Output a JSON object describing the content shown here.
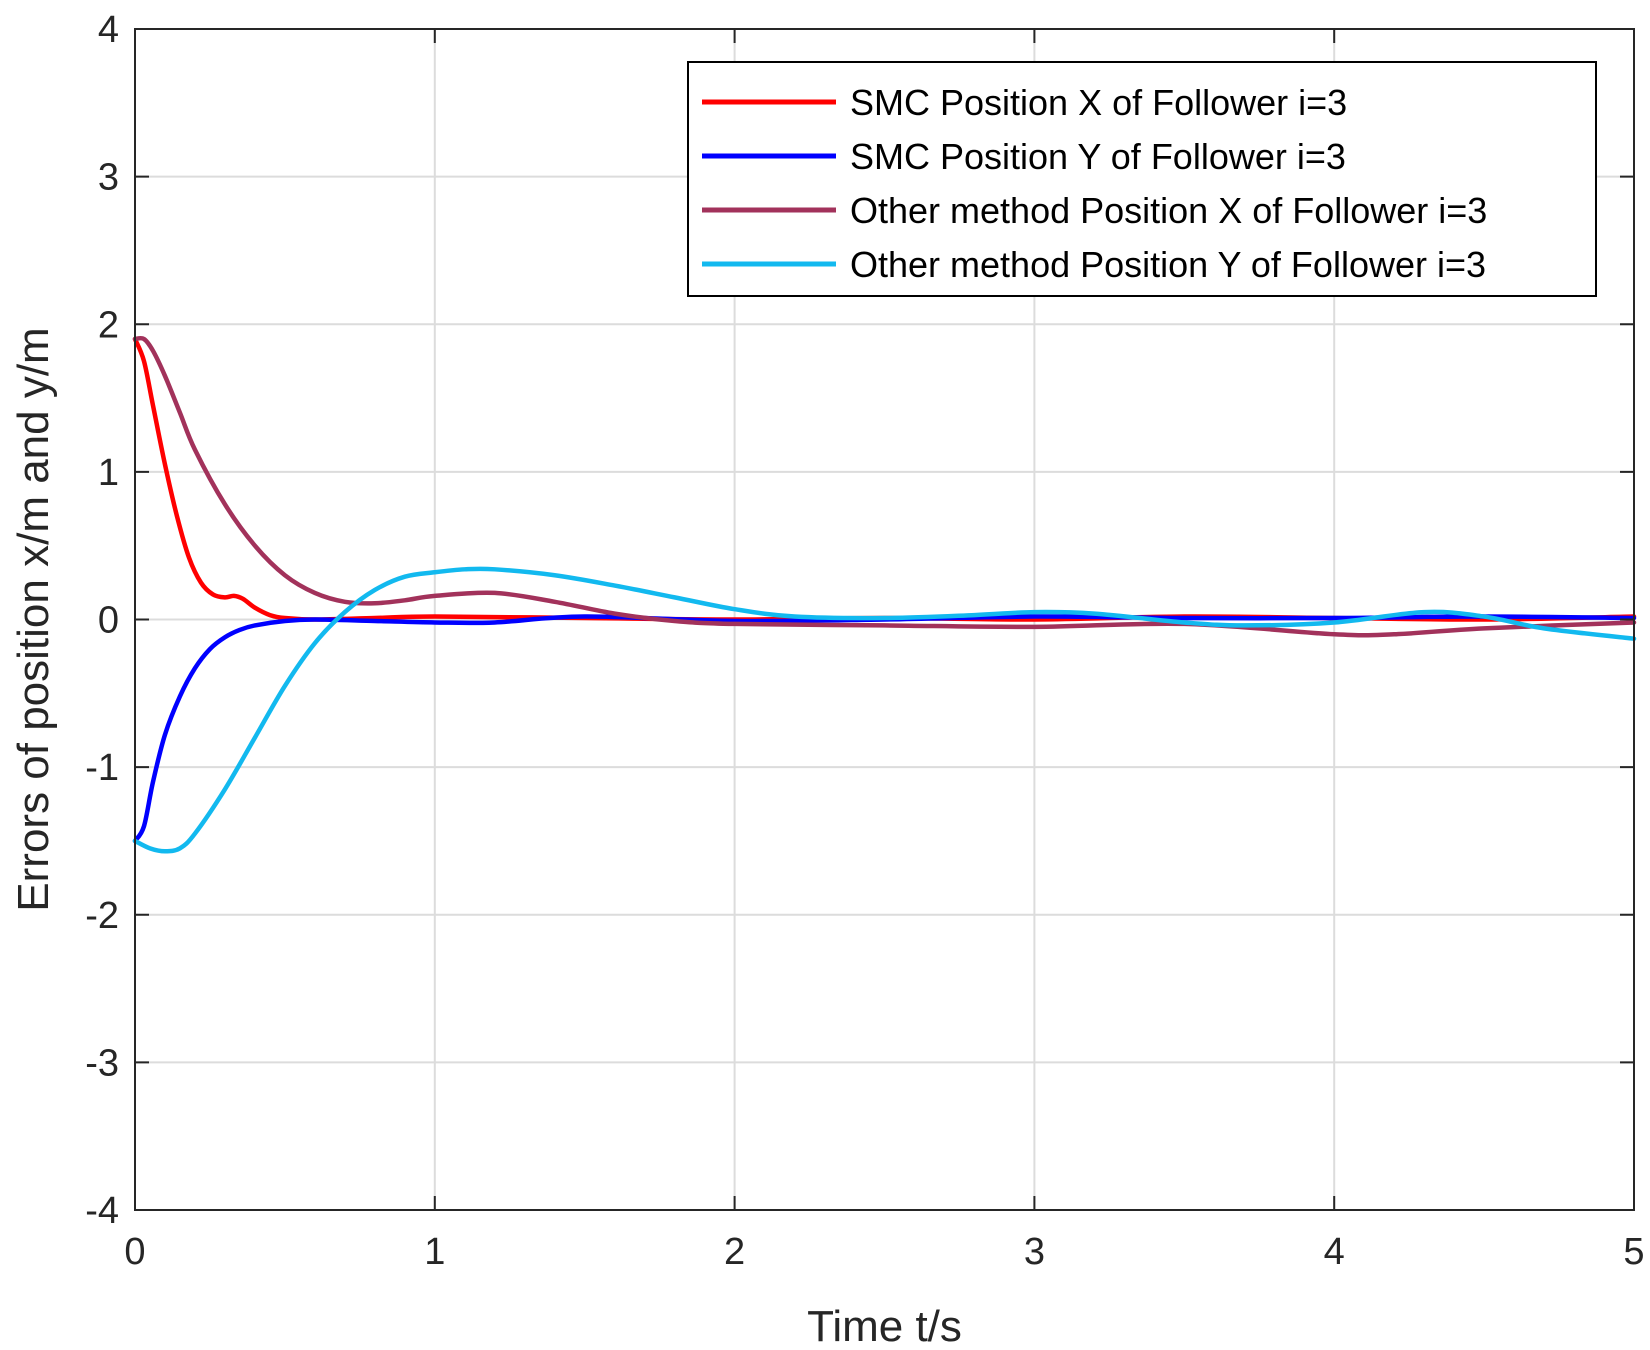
{
  "chart_data": {
    "type": "line",
    "title": "",
    "xlabel": "Time t/s",
    "ylabel": "Errors of position x/m and y/m",
    "xlim": [
      0,
      5
    ],
    "ylim": [
      -4,
      4
    ],
    "xticks": [
      0,
      1,
      2,
      3,
      4,
      5
    ],
    "yticks": [
      -4,
      -3,
      -2,
      -1,
      0,
      1,
      2,
      3,
      4
    ],
    "grid": true,
    "legend_location": "top-right",
    "series": [
      {
        "name": "SMC Position X of Follower i=3",
        "color": "#ff0000",
        "x": [
          0,
          0.03,
          0.06,
          0.1,
          0.14,
          0.18,
          0.22,
          0.26,
          0.3,
          0.33,
          0.36,
          0.4,
          0.45,
          0.5,
          0.6,
          0.8,
          1.0,
          1.5,
          2.0,
          2.5,
          3.0,
          3.5,
          4.0,
          4.5,
          5.0
        ],
        "y": [
          1.9,
          1.75,
          1.45,
          1.05,
          0.7,
          0.42,
          0.25,
          0.17,
          0.15,
          0.16,
          0.14,
          0.08,
          0.03,
          0.01,
          0.0,
          0.01,
          0.02,
          0.01,
          0.0,
          0.01,
          0.0,
          0.02,
          0.01,
          0.0,
          0.02
        ]
      },
      {
        "name": "SMC Position Y of Follower i=3",
        "color": "#0000ff",
        "x": [
          0,
          0.03,
          0.06,
          0.1,
          0.15,
          0.2,
          0.25,
          0.3,
          0.35,
          0.4,
          0.5,
          0.6,
          0.8,
          1.0,
          1.2,
          1.5,
          2.0,
          2.5,
          3.0,
          3.5,
          4.0,
          4.5,
          5.0
        ],
        "y": [
          -1.5,
          -1.4,
          -1.1,
          -0.78,
          -0.52,
          -0.33,
          -0.2,
          -0.12,
          -0.07,
          -0.04,
          -0.01,
          0.0,
          -0.01,
          -0.02,
          -0.02,
          0.02,
          -0.01,
          0.0,
          0.02,
          0.01,
          0.01,
          0.02,
          0.01
        ]
      },
      {
        "name": "Other method Position X of Follower i=3",
        "color": "#a2325b",
        "x": [
          0,
          0.03,
          0.06,
          0.1,
          0.15,
          0.2,
          0.3,
          0.4,
          0.5,
          0.6,
          0.7,
          0.8,
          0.9,
          1.0,
          1.2,
          1.4,
          1.6,
          1.8,
          2.0,
          2.5,
          3.0,
          3.5,
          4.0,
          4.2,
          4.5,
          5.0
        ],
        "y": [
          1.9,
          1.9,
          1.82,
          1.65,
          1.4,
          1.15,
          0.78,
          0.5,
          0.3,
          0.18,
          0.12,
          0.11,
          0.13,
          0.16,
          0.18,
          0.12,
          0.04,
          -0.01,
          -0.03,
          -0.04,
          -0.05,
          -0.03,
          -0.1,
          -0.1,
          -0.06,
          -0.02
        ]
      },
      {
        "name": "Other method Position Y of Follower i=3",
        "color": "#12b9ef",
        "x": [
          0,
          0.05,
          0.1,
          0.15,
          0.2,
          0.3,
          0.4,
          0.5,
          0.6,
          0.7,
          0.8,
          0.9,
          1.0,
          1.1,
          1.2,
          1.4,
          1.6,
          1.8,
          2.0,
          2.2,
          2.5,
          2.8,
          3.0,
          3.2,
          3.5,
          3.7,
          4.0,
          4.3,
          4.5,
          4.7,
          5.0
        ],
        "y": [
          -1.5,
          -1.55,
          -1.57,
          -1.55,
          -1.45,
          -1.15,
          -0.8,
          -0.45,
          -0.16,
          0.05,
          0.2,
          0.29,
          0.32,
          0.34,
          0.34,
          0.3,
          0.23,
          0.15,
          0.07,
          0.02,
          0.01,
          0.03,
          0.05,
          0.04,
          -0.02,
          -0.04,
          -0.02,
          0.05,
          0.02,
          -0.06,
          -0.13
        ]
      }
    ]
  }
}
